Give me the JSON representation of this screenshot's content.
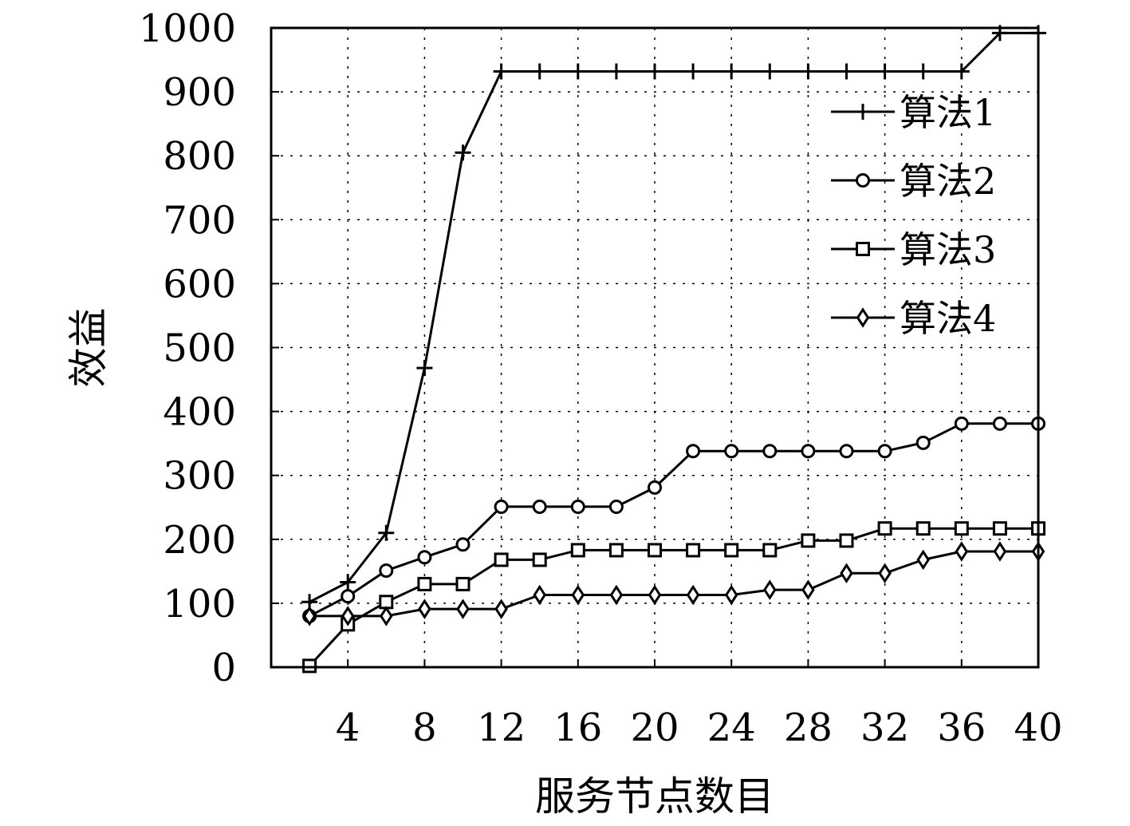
{
  "chart_data": {
    "type": "line",
    "xlabel": "服务节点数目",
    "ylabel": "效益",
    "xlim": [
      0,
      40
    ],
    "ylim": [
      0,
      1000
    ],
    "xticks": [
      4,
      8,
      12,
      16,
      20,
      24,
      28,
      32,
      36,
      40
    ],
    "yticks": [
      0,
      100,
      200,
      300,
      400,
      500,
      600,
      700,
      800,
      900,
      1000
    ],
    "grid": true,
    "legend_position": "top-right",
    "x": [
      2,
      4,
      6,
      8,
      10,
      12,
      14,
      16,
      18,
      20,
      22,
      24,
      26,
      28,
      30,
      32,
      34,
      36,
      38,
      40
    ],
    "series": [
      {
        "name": "算法1",
        "marker": "plus",
        "values": [
          102,
          133,
          210,
          468,
          805,
          932,
          932,
          932,
          932,
          932,
          932,
          932,
          932,
          932,
          932,
          932,
          932,
          932,
          992,
          992
        ]
      },
      {
        "name": "算法2",
        "marker": "circle",
        "values": [
          80,
          111,
          151,
          172,
          192,
          251,
          251,
          251,
          251,
          281,
          338,
          338,
          338,
          338,
          338,
          338,
          351,
          381,
          381,
          381
        ]
      },
      {
        "name": "算法3",
        "marker": "square",
        "values": [
          2,
          67,
          102,
          130,
          130,
          168,
          168,
          183,
          183,
          183,
          183,
          183,
          183,
          198,
          198,
          217,
          217,
          217,
          217,
          217
        ]
      },
      {
        "name": "算法4",
        "marker": "diamond",
        "values": [
          80,
          80,
          80,
          91,
          91,
          91,
          113,
          113,
          113,
          113,
          113,
          113,
          121,
          121,
          147,
          147,
          168,
          181,
          181,
          181
        ]
      }
    ]
  }
}
